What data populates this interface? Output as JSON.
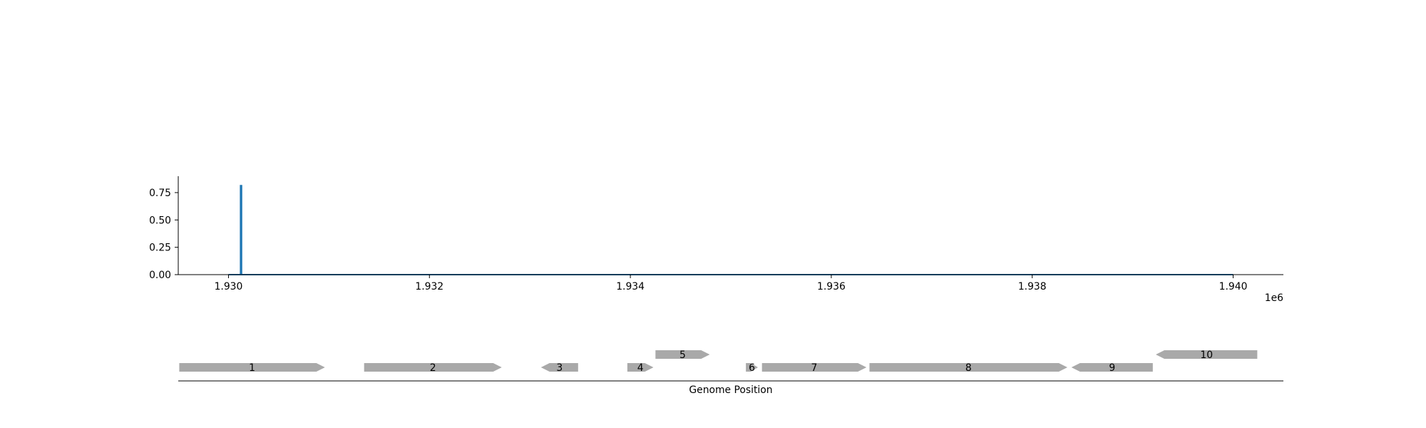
{
  "chart_data": [
    {
      "type": "line",
      "title": "",
      "xlabel": "",
      "ylabel": "",
      "x_offset_label": "1e6",
      "xlim": [
        1929500,
        1940500
      ],
      "ylim": [
        0,
        0.9
      ],
      "x_ticks": [
        1930000,
        1932000,
        1934000,
        1936000,
        1938000,
        1940000
      ],
      "x_tick_labels": [
        "1.930",
        "1.932",
        "1.934",
        "1.936",
        "1.938",
        "1.940"
      ],
      "y_ticks": [
        0.0,
        0.25,
        0.5,
        0.75
      ],
      "y_tick_labels": [
        "0.00",
        "0.25",
        "0.50",
        "0.75"
      ],
      "grid": false,
      "series": [
        {
          "color": "#1f77b4",
          "x": [
            1930000,
            1930120,
            1930120,
            1930120,
            1930130,
            1930130,
            1930130,
            1940000
          ],
          "y": [
            0,
            0,
            0.82,
            0,
            0,
            0.82,
            0,
            0
          ]
        }
      ]
    },
    {
      "type": "gene_map",
      "xlabel": "Genome Position",
      "xlim": [
        1929500,
        1940500
      ],
      "gene_color": "#a9a9a9",
      "genes": [
        {
          "label": "1",
          "start": 1929510,
          "end": 1930960,
          "strand": "+",
          "level": 0
        },
        {
          "label": "2",
          "start": 1931350,
          "end": 1932720,
          "strand": "+",
          "level": 0
        },
        {
          "label": "3",
          "start": 1933110,
          "end": 1933480,
          "strand": "-",
          "level": 0
        },
        {
          "label": "4",
          "start": 1933970,
          "end": 1934230,
          "strand": "+",
          "level": 0
        },
        {
          "label": "5",
          "start": 1934250,
          "end": 1934790,
          "strand": "+",
          "level": 1
        },
        {
          "label": "6",
          "start": 1935150,
          "end": 1935270,
          "strand": "+",
          "level": 0
        },
        {
          "label": "7",
          "start": 1935310,
          "end": 1936350,
          "strand": "+",
          "level": 0
        },
        {
          "label": "8",
          "start": 1936380,
          "end": 1938350,
          "strand": "+",
          "level": 0
        },
        {
          "label": "9",
          "start": 1938390,
          "end": 1939200,
          "strand": "-",
          "level": 0
        },
        {
          "label": "10",
          "start": 1939230,
          "end": 1940240,
          "strand": "-",
          "level": 1
        }
      ]
    }
  ]
}
